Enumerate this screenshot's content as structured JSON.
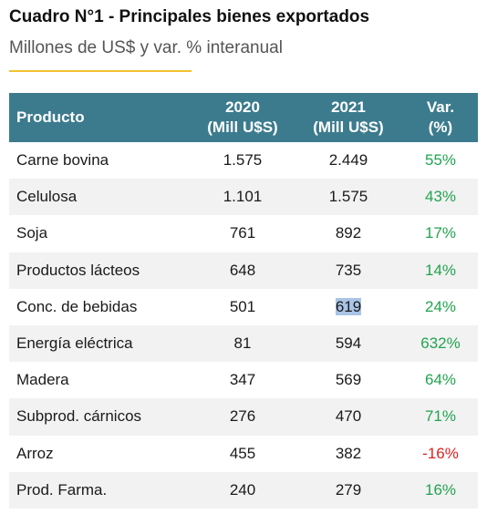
{
  "title": "Cuadro N°1 - Principales bienes exportados",
  "subtitle": "Millones de US$ y var. % interanual",
  "colors": {
    "header_bg": "#3c7b8e",
    "accent_rule": "#f2c230",
    "positive": "#22a350",
    "negative": "#e02020",
    "stripe": "#f2f2f2"
  },
  "table": {
    "headers": {
      "product": "Producto",
      "y2020_line1": "2020",
      "y2020_line2": "(Mill U$S)",
      "y2021_line1": "2021",
      "y2021_line2": "(Mill U$S)",
      "var_line1": "Var.",
      "var_line2": "(%)"
    },
    "rows": [
      {
        "product": "Carne bovina",
        "v2020": "1.575",
        "v2021": "2.449",
        "var": "55%"
      },
      {
        "product": "Celulosa",
        "v2020": "1.101",
        "v2021": "1.575",
        "var": "43%"
      },
      {
        "product": "Soja",
        "v2020": "761",
        "v2021": "892",
        "var": "17%"
      },
      {
        "product": "Productos lácteos",
        "v2020": "648",
        "v2021": "735",
        "var": "14%"
      },
      {
        "product": "Conc. de bebidas",
        "v2020": "501",
        "v2021": "619",
        "var": "24%"
      },
      {
        "product": "Energía eléctrica",
        "v2020": "81",
        "v2021": "594",
        "var": "632%"
      },
      {
        "product": "Madera",
        "v2020": "347",
        "v2021": "569",
        "var": "64%"
      },
      {
        "product": "Subprod. cárnicos",
        "v2020": "276",
        "v2021": "470",
        "var": "71%"
      },
      {
        "product": "Arroz",
        "v2020": "455",
        "v2021": "382",
        "var": "-16%"
      },
      {
        "product": "Prod. Farma.",
        "v2020": "240",
        "v2021": "279",
        "var": "16%"
      }
    ]
  }
}
